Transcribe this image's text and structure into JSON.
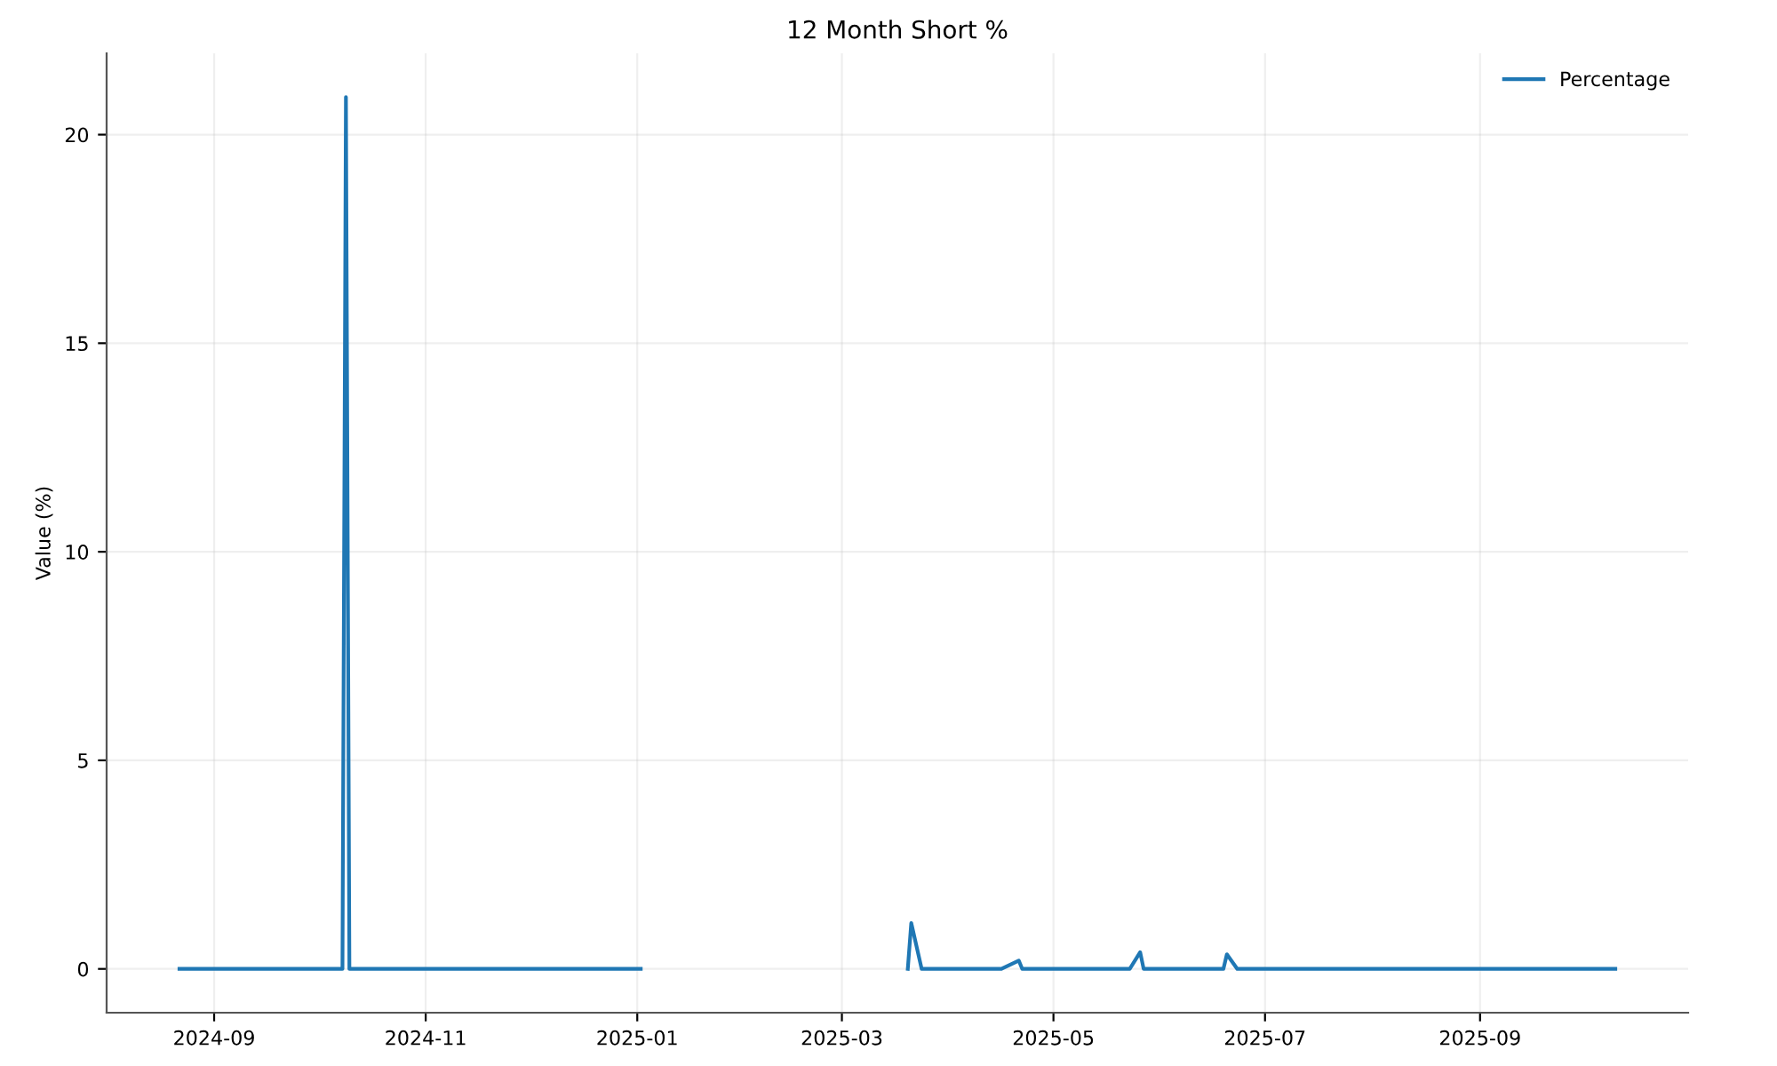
{
  "chart_data": {
    "type": "line",
    "title": "12 Month Short %",
    "ylabel": "Value (%)",
    "x": [
      "2024-08-22",
      "2024-10-08",
      "2024-10-09",
      "2024-10-10",
      "2025-01-02",
      "2025-02-10",
      "2025-03-20",
      "2025-03-21",
      "2025-03-24",
      "2025-04-16",
      "2025-04-21",
      "2025-04-22",
      "2025-05-23",
      "2025-05-26",
      "2025-05-27",
      "2025-06-19",
      "2025-06-20",
      "2025-06-23",
      "2025-10-10"
    ],
    "series": [
      {
        "name": "Percentage",
        "color": "#1f77b4",
        "values": [
          0,
          0,
          20.9,
          0,
          0,
          null,
          0,
          1.1,
          0,
          0,
          0.2,
          0,
          0,
          0.4,
          0,
          0,
          0.35,
          0,
          0
        ]
      }
    ],
    "xlim": [
      "2024-08-01",
      "2025-10-31"
    ],
    "xticks": [
      "2024-09",
      "2024-11",
      "2025-01",
      "2025-03",
      "2025-05",
      "2025-07",
      "2025-09"
    ],
    "ylim": [
      -1.05,
      21.95
    ],
    "yticks": [
      0,
      5,
      10,
      15,
      20
    ],
    "grid": true,
    "legend": "top right"
  }
}
